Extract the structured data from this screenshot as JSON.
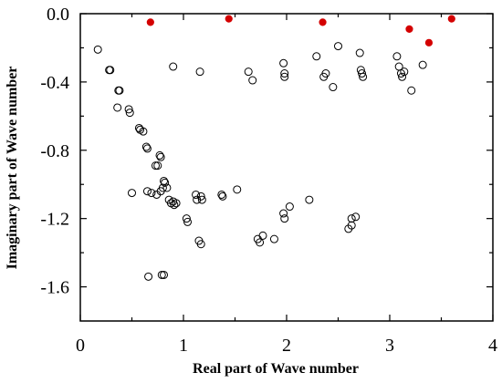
{
  "chart_data": {
    "type": "scatter",
    "title": "",
    "xlabel": "Real part of Wave number",
    "ylabel": "Imaginary part of Wave number",
    "xlim": [
      0,
      4
    ],
    "ylim": [
      -1.8,
      0
    ],
    "xticks": [
      0,
      1,
      2,
      3,
      4
    ],
    "xtick_labels": [
      "0",
      "1",
      "2",
      "3",
      "4"
    ],
    "yticks": [
      0.0,
      -0.4,
      -0.8,
      -1.2,
      -1.6
    ],
    "ytick_labels": [
      "0.0",
      "-0.4",
      "-0.8",
      "-1.2",
      "-1.6"
    ],
    "grid": false,
    "colors": {
      "open_marker": "#000000",
      "highlight_marker": "#d40000"
    },
    "series": [
      {
        "marker": "open-circle",
        "points": [
          [
            0.17,
            -0.21
          ],
          [
            0.28,
            -0.33
          ],
          [
            0.29,
            -0.33
          ],
          [
            0.37,
            -0.45
          ],
          [
            0.38,
            -0.45
          ],
          [
            0.36,
            -0.55
          ],
          [
            0.47,
            -0.56
          ],
          [
            0.48,
            -0.58
          ],
          [
            0.57,
            -0.67
          ],
          [
            0.58,
            -0.68
          ],
          [
            0.61,
            -0.69
          ],
          [
            0.64,
            -0.78
          ],
          [
            0.65,
            -0.79
          ],
          [
            0.73,
            -0.89
          ],
          [
            0.75,
            -0.89
          ],
          [
            0.77,
            -0.83
          ],
          [
            0.78,
            -0.84
          ],
          [
            0.81,
            -0.98
          ],
          [
            0.82,
            -0.99
          ],
          [
            0.8,
            -1.02
          ],
          [
            0.84,
            -1.02
          ],
          [
            0.78,
            -1.04
          ],
          [
            0.86,
            -1.09
          ],
          [
            0.88,
            -1.11
          ],
          [
            0.9,
            -1.1
          ],
          [
            0.91,
            -1.12
          ],
          [
            0.93,
            -1.11
          ],
          [
            0.5,
            -1.05
          ],
          [
            0.65,
            -1.04
          ],
          [
            0.69,
            -1.05
          ],
          [
            0.74,
            -1.06
          ],
          [
            1.03,
            -1.2
          ],
          [
            1.04,
            -1.22
          ],
          [
            1.12,
            -1.06
          ],
          [
            1.13,
            -1.09
          ],
          [
            1.17,
            -1.07
          ],
          [
            1.18,
            -1.09
          ],
          [
            1.37,
            -1.06
          ],
          [
            1.38,
            -1.07
          ],
          [
            1.52,
            -1.03
          ],
          [
            1.15,
            -1.33
          ],
          [
            1.17,
            -1.35
          ],
          [
            1.72,
            -1.32
          ],
          [
            1.74,
            -1.34
          ],
          [
            1.77,
            -1.3
          ],
          [
            1.88,
            -1.32
          ],
          [
            1.97,
            -1.17
          ],
          [
            1.98,
            -1.2
          ],
          [
            2.03,
            -1.13
          ],
          [
            2.22,
            -1.09
          ],
          [
            2.6,
            -1.26
          ],
          [
            2.63,
            -1.24
          ],
          [
            2.63,
            -1.2
          ],
          [
            2.67,
            -1.19
          ],
          [
            0.66,
            -1.54
          ],
          [
            0.79,
            -1.53
          ],
          [
            0.81,
            -1.53
          ],
          [
            0.9,
            -0.31
          ],
          [
            1.16,
            -0.34
          ],
          [
            1.63,
            -0.34
          ],
          [
            1.67,
            -0.39
          ],
          [
            1.97,
            -0.29
          ],
          [
            1.98,
            -0.35
          ],
          [
            1.98,
            -0.37
          ],
          [
            2.29,
            -0.25
          ],
          [
            2.36,
            -0.37
          ],
          [
            2.38,
            -0.35
          ],
          [
            2.45,
            -0.43
          ],
          [
            2.5,
            -0.19
          ],
          [
            2.71,
            -0.23
          ],
          [
            2.72,
            -0.33
          ],
          [
            2.73,
            -0.35
          ],
          [
            2.74,
            -0.37
          ],
          [
            3.07,
            -0.25
          ],
          [
            3.09,
            -0.31
          ],
          [
            3.11,
            -0.35
          ],
          [
            3.12,
            -0.37
          ],
          [
            3.14,
            -0.34
          ],
          [
            3.21,
            -0.45
          ],
          [
            3.32,
            -0.3
          ]
        ]
      },
      {
        "marker": "filled-red",
        "points": [
          [
            0.68,
            -0.05
          ],
          [
            1.44,
            -0.03
          ],
          [
            2.35,
            -0.05
          ],
          [
            3.19,
            -0.09
          ],
          [
            3.38,
            -0.17
          ],
          [
            3.6,
            -0.03
          ]
        ]
      }
    ]
  }
}
